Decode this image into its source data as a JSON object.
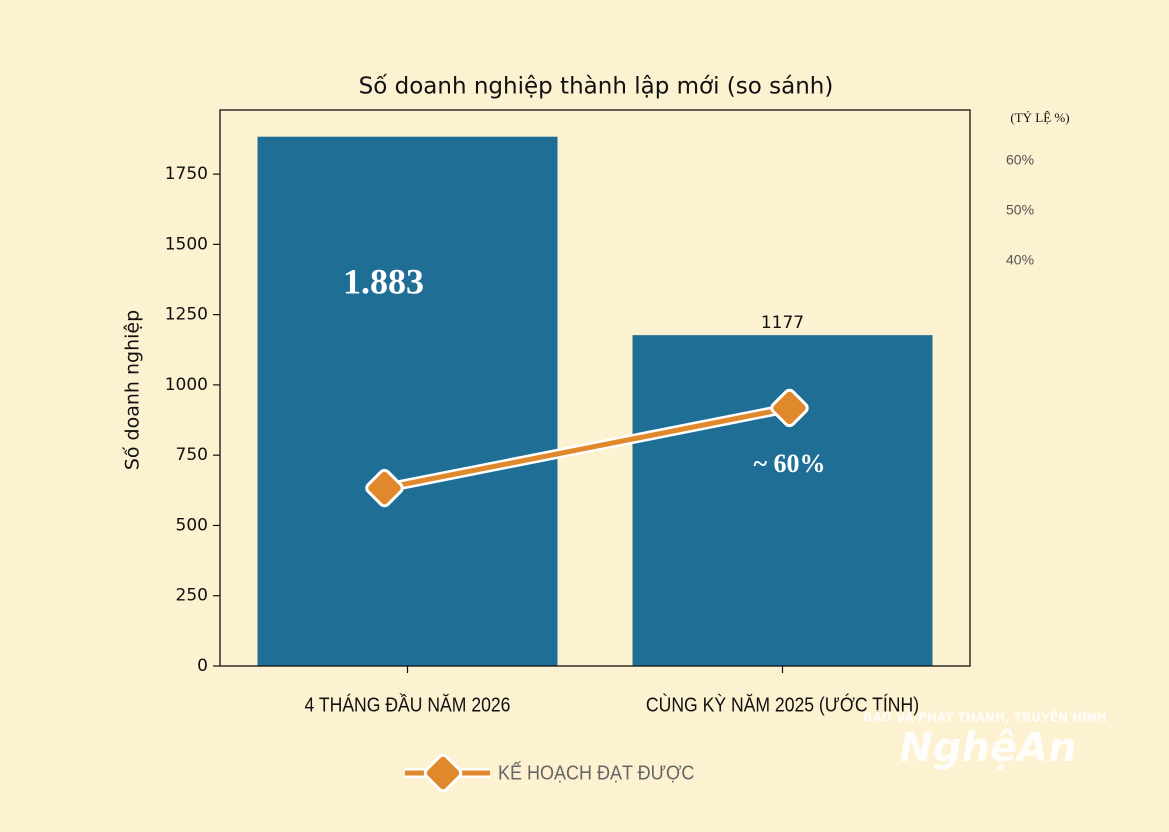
{
  "chart_data": {
    "type": "bar",
    "title": "Số doanh nghiệp thành lập mới (so sánh)",
    "ylabel": "Số doanh nghiệp",
    "y2label": "(TỶ LỆ %)",
    "categories": [
      "4 THÁNG ĐẦU NĂM 2026",
      "CÙNG KỲ NĂM 2025 (ƯỚC TÍNH)"
    ],
    "values": [
      1883,
      1177
    ],
    "value_labels": [
      "1.883",
      "1177"
    ],
    "color": "#1f6e96",
    "ylim": [
      0,
      1978
    ],
    "yticks": [
      0,
      250,
      500,
      750,
      1000,
      1250,
      1500,
      1750
    ],
    "y2lim": [
      -41,
      70.2
    ],
    "y2ticks": [
      {
        "value": 60,
        "label": "60%"
      },
      {
        "value": 50,
        "label": "50%"
      },
      {
        "value": 40,
        "label": "40%"
      }
    ],
    "line": {
      "name": "KẾ HOẠCH ĐẠT ĐƯỢC",
      "color": "#e0892c",
      "values": [
        633,
        918
      ]
    },
    "annotations": [
      "~ 60%"
    ],
    "watermark": [
      "BÁO VÀ PHÁT THANH, TRUYỀN HÌNH",
      "NghệAn"
    ]
  }
}
